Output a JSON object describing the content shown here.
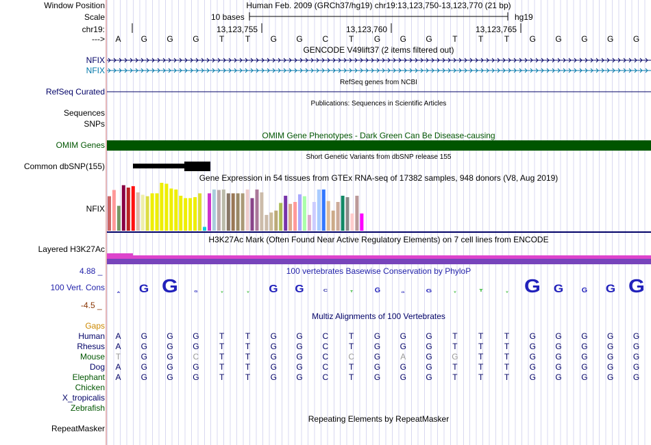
{
  "window_position_label": "Window Position",
  "window_position_value": "Human Feb. 2009 (GRCh37/hg19)    chr19:13,123,750-13,123,770 (21 bp)",
  "scale_label": "Scale",
  "scale_bases": "10 bases",
  "scale_assembly": "hg19",
  "chrom_label": "chr19:",
  "ruler_ticks": [
    "13,123,755",
    "13,123,760",
    "13,123,765"
  ],
  "arrow_label": "--->",
  "dna_bases": [
    "A",
    "G",
    "G",
    "G",
    "T",
    "T",
    "G",
    "G",
    "C",
    "T",
    "G",
    "G",
    "G",
    "T",
    "T",
    "T",
    "G",
    "G",
    "G",
    "G",
    "G"
  ],
  "gencode_title": "GENCODE V49lift37 (2 items filtered out)",
  "gencode_genes": [
    "NFIX",
    "NFIX"
  ],
  "refseq_title": "RefSeq genes from NCBI",
  "refseq_label": "RefSeq Curated",
  "pubs_title": "Publications: Sequences in Scientific Articles",
  "sequences_label": "Sequences",
  "snps_label": "SNPs",
  "omim_title": "OMIM Gene Phenotypes - Dark Green Can Be Disease-causing",
  "omim_label": "OMIM Genes",
  "dbsnp_title": "Short Genetic Variants from dbSNP release 155",
  "dbsnp_label": "Common dbSNP(155)",
  "gtex_title": "Gene Expression in 54 tissues from GTEx RNA-seq of 17382 samples, 948 donors (V8, Aug 2019)",
  "gtex_label": "NFIX",
  "gtex_levels": [
    0.72,
    0.85,
    0.52,
    0.95,
    0.9,
    0.93,
    0.8,
    0.75,
    0.72,
    0.78,
    0.78,
    1.0,
    0.98,
    0.88,
    0.86,
    0.73,
    0.68,
    0.68,
    0.7,
    0.78,
    0.08,
    0.78,
    0.86,
    0.85,
    0.86,
    0.78,
    0.78,
    0.78,
    0.78,
    0.86,
    0.68,
    0.86,
    0.8,
    0.33,
    0.38,
    0.42,
    0.58,
    0.73,
    0.56,
    0.6,
    0.76,
    0.72,
    0.33,
    0.6,
    0.86,
    0.86,
    0.62,
    0.42,
    0.6,
    0.73,
    0.7,
    0.36,
    0.73,
    0.36
  ],
  "gtex_colors": [
    "#cc6666",
    "#ff9999",
    "#779966",
    "#880044",
    "#bb2222",
    "#ff1111",
    "#ddbbaa",
    "#eeeeaa",
    "#dddd44",
    "#eeee00",
    "#eeee00",
    "#eeee00",
    "#eeee00",
    "#eeee00",
    "#eeee00",
    "#eeee00",
    "#eeee00",
    "#eeee00",
    "#eeee00",
    "#dddd33",
    "#11ccdd",
    "#cc33cc",
    "#aaccdd",
    "#bbaaaa",
    "#bbbbaa",
    "#887766",
    "#997755",
    "#998866",
    "#aa9977",
    "#eecccc",
    "#884488",
    "#aa7799",
    "#ccbbaa",
    "#ccbbaa",
    "#ccbb99",
    "#bbaa77",
    "#aabb55",
    "#7733aa",
    "#ddaa88",
    "#ff9999",
    "#aaaaff",
    "#aaffaa",
    "#ddaacc",
    "#ccccff",
    "#aaccff",
    "#3377ff",
    "#ddbb99",
    "#ccaa88",
    "#ccaa99",
    "#118866",
    "#888888",
    "#ffcccc",
    "#bb9999",
    "#ff00ff"
  ],
  "h3k27ac_title": "H3K27Ac Mark (Often Found Near Active Regulatory Elements) on 7 cell lines from ENCODE",
  "h3k27ac_label": "Layered H3K27Ac",
  "cons_title": "100 vertebrates Basewise Conservation by PhyloP",
  "cons_label": "100 Vert. Cons",
  "cons_max": "4.88 _",
  "cons_min": "-4.5 _",
  "multiz_title": "Multiz Alignments of 100 Vertebrates",
  "gaps_label": "Gaps",
  "species": [
    {
      "name": "Human",
      "bases": [
        "A",
        "G",
        "G",
        "G",
        "T",
        "T",
        "G",
        "G",
        "C",
        "T",
        "G",
        "G",
        "G",
        "T",
        "T",
        "T",
        "G",
        "G",
        "G",
        "G",
        "G"
      ]
    },
    {
      "name": "Rhesus",
      "bases": [
        "A",
        "G",
        "G",
        "G",
        "T",
        "T",
        "G",
        "G",
        "C",
        "T",
        "G",
        "G",
        "G",
        "T",
        "T",
        "T",
        "G",
        "G",
        "G",
        "G",
        "G"
      ]
    },
    {
      "name": "Mouse",
      "bases": [
        "T",
        "G",
        "G",
        "C",
        "T",
        "T",
        "G",
        "G",
        "C",
        "C",
        "G",
        "A",
        "G",
        "G",
        "T",
        "T",
        "G",
        "G",
        "G",
        "G",
        "G"
      ]
    },
    {
      "name": "Dog",
      "bases": [
        "A",
        "G",
        "G",
        "G",
        "T",
        "T",
        "G",
        "G",
        "C",
        "T",
        "G",
        "G",
        "G",
        "T",
        "T",
        "T",
        "G",
        "G",
        "G",
        "G",
        "G"
      ]
    },
    {
      "name": "Elephant",
      "bases": [
        "A",
        "G",
        "G",
        "G",
        "T",
        "T",
        "G",
        "G",
        "C",
        "T",
        "G",
        "G",
        "G",
        "T",
        "T",
        "T",
        "G",
        "G",
        "G",
        "G",
        "G"
      ]
    },
    {
      "name": "Chicken",
      "bases": []
    },
    {
      "name": "X_tropicalis",
      "bases": []
    },
    {
      "name": "Zebrafish",
      "bases": []
    }
  ],
  "repeat_title": "Repeating Elements by RepeatMasker",
  "repeat_label": "RepeatMasker",
  "colors": {
    "label_blue": "#000066",
    "label_teal": "#0077aa",
    "omim_green": "#005500",
    "cons_blue": "#2222aa",
    "cons_red": "#883300",
    "gaps_orange": "#cc8800",
    "species_green": "#005500",
    "h3k_magenta": "#dd44cc",
    "h3k_purple": "#7744bb"
  }
}
